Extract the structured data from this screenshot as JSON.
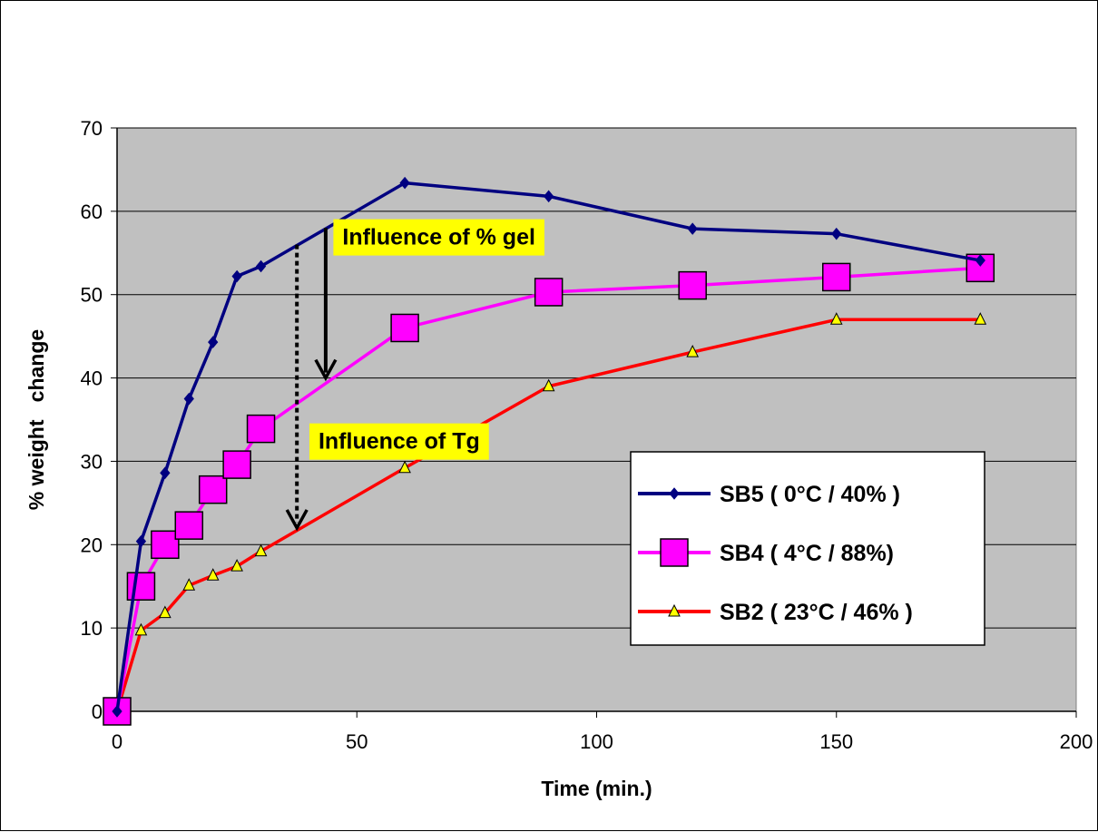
{
  "chart_data": {
    "type": "line",
    "xlabel": "Time (min.)",
    "ylabel": "% weight   change",
    "xlim": [
      0,
      200
    ],
    "ylim": [
      0,
      70
    ],
    "xticks": [
      0,
      50,
      100,
      150,
      200
    ],
    "yticks": [
      0,
      10,
      20,
      30,
      40,
      50,
      60,
      70
    ],
    "grid": "horizontal",
    "plot_background": "#c0c0c0",
    "legend_position": "right",
    "series": [
      {
        "name": "SB5 ( 0°C / 40% )",
        "color": "#000080",
        "marker": "diamond",
        "x": [
          0,
          5,
          10,
          15,
          20,
          25,
          30,
          60,
          90,
          120,
          150,
          180
        ],
        "y": [
          0,
          20.4,
          28.6,
          37.5,
          44.3,
          52.2,
          53.4,
          63.4,
          61.8,
          57.9,
          57.3,
          54.1
        ]
      },
      {
        "name": "SB4 ( 4°C / 88%)",
        "color": "#ff00ff",
        "marker": "square",
        "x": [
          0,
          5,
          10,
          15,
          20,
          25,
          30,
          60,
          90,
          120,
          150,
          180
        ],
        "y": [
          0,
          15.0,
          20.0,
          22.3,
          26.6,
          29.6,
          33.9,
          46.0,
          50.3,
          51.1,
          52.1,
          53.2
        ]
      },
      {
        "name": "SB2 ( 23°C / 46% )",
        "color": "#ff0000",
        "marker": "triangle",
        "x": [
          0,
          5,
          10,
          15,
          20,
          25,
          30,
          60,
          90,
          120,
          150,
          180
        ],
        "y": [
          0,
          9.7,
          11.8,
          15.1,
          16.3,
          17.4,
          19.2,
          29.2,
          39.0,
          43.1,
          47.0,
          47.0
        ]
      }
    ],
    "annotations": [
      {
        "text": "Influence of % gel",
        "x": 47,
        "y": 56,
        "arrow_from": [
          43.5,
          58
        ],
        "arrow_to": [
          43.5,
          40
        ],
        "arrow_style": "solid"
      },
      {
        "text": "Influence of Tg",
        "x": 42,
        "y": 31.5,
        "arrow_from": [
          37.5,
          56
        ],
        "arrow_to": [
          37.5,
          22
        ],
        "arrow_style": "dotted"
      }
    ]
  }
}
